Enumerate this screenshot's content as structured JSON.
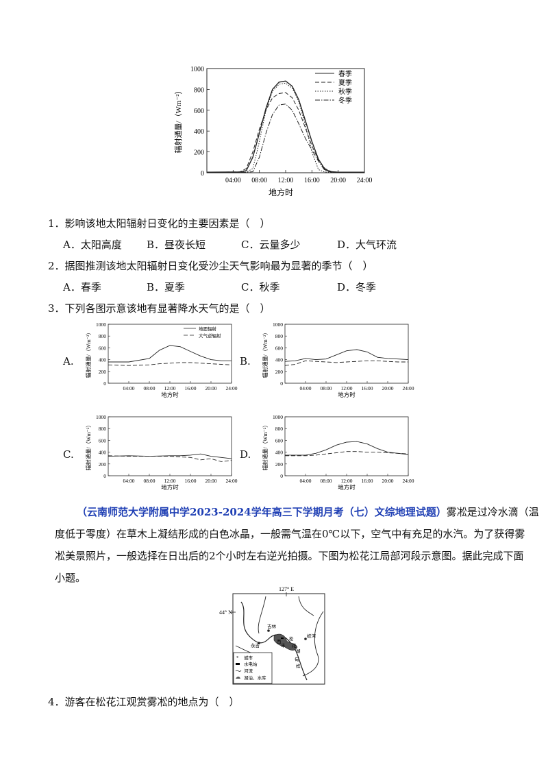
{
  "main_chart": {
    "ylabel": "辐射通量/（Wm⁻²）",
    "xlabel": "地方时",
    "y_ticks": [
      "0",
      "200",
      "400",
      "600",
      "800",
      "1000"
    ],
    "x_ticks": [
      "04:00",
      "08:00",
      "12:00",
      "16:00",
      "20:00",
      "24:00"
    ],
    "legend": [
      "春季",
      "夏季",
      "秋季",
      "冬季"
    ]
  },
  "chart_data": [
    {
      "type": "line",
      "xlabel": "地方时",
      "ylabel": "辐射通量/（Wm⁻²）",
      "ylim": [
        0,
        1000
      ],
      "xlim": [
        0,
        24
      ],
      "legend_position": "top-right",
      "x": [
        0,
        5,
        6,
        7,
        8,
        9,
        10,
        11,
        12,
        13,
        14,
        15,
        16,
        17,
        18,
        19,
        20,
        22,
        24
      ],
      "series": [
        {
          "name": "春季",
          "style": "solid",
          "values": [
            5,
            8,
            20,
            150,
            380,
            620,
            800,
            870,
            880,
            830,
            700,
            500,
            300,
            130,
            30,
            10,
            5,
            5,
            5
          ]
        },
        {
          "name": "夏季",
          "style": "dashed",
          "values": [
            5,
            8,
            40,
            200,
            420,
            600,
            720,
            760,
            770,
            720,
            600,
            430,
            260,
            120,
            40,
            10,
            5,
            5,
            5
          ]
        },
        {
          "name": "秋季",
          "style": "dotted",
          "values": [
            5,
            5,
            5,
            40,
            300,
            600,
            780,
            850,
            860,
            810,
            680,
            460,
            200,
            30,
            5,
            5,
            5,
            5,
            5
          ]
        },
        {
          "name": "冬季",
          "style": "dashdot",
          "values": [
            5,
            5,
            5,
            10,
            150,
            380,
            560,
            650,
            660,
            600,
            470,
            330,
            220,
            110,
            20,
            5,
            5,
            5,
            5
          ]
        }
      ]
    },
    {
      "type": "line",
      "panel": "A",
      "ylim": [
        0,
        1000
      ],
      "xlim": [
        0,
        24
      ],
      "x": [
        0,
        4,
        8,
        10,
        12,
        14,
        16,
        18,
        20,
        22,
        24
      ],
      "series": [
        {
          "name": "地面辐射",
          "style": "solid",
          "values": [
            360,
            360,
            420,
            560,
            640,
            620,
            540,
            460,
            400,
            380,
            380
          ]
        },
        {
          "name": "大气逆辐射",
          "style": "dashed",
          "values": [
            310,
            300,
            310,
            330,
            340,
            350,
            350,
            340,
            330,
            320,
            310
          ]
        }
      ]
    },
    {
      "type": "line",
      "panel": "B",
      "ylim": [
        0,
        1000
      ],
      "xlim": [
        0,
        24
      ],
      "x": [
        0,
        2,
        4,
        6,
        8,
        10,
        12,
        14,
        16,
        18,
        20,
        22,
        24
      ],
      "series": [
        {
          "name": "地面辐射",
          "style": "solid",
          "values": [
            370,
            380,
            420,
            400,
            410,
            480,
            550,
            570,
            530,
            440,
            420,
            410,
            400
          ]
        },
        {
          "name": "大气逆辐射",
          "style": "dashed",
          "values": [
            300,
            320,
            380,
            370,
            360,
            350,
            360,
            370,
            380,
            380,
            370,
            360,
            360
          ]
        }
      ]
    },
    {
      "type": "line",
      "panel": "C",
      "ylim": [
        0,
        1000
      ],
      "xlim": [
        0,
        24
      ],
      "x": [
        0,
        4,
        8,
        12,
        14,
        16,
        18,
        20,
        22,
        24
      ],
      "series": [
        {
          "name": "地面辐射",
          "style": "solid",
          "values": [
            330,
            340,
            330,
            340,
            340,
            350,
            370,
            330,
            310,
            290
          ]
        },
        {
          "name": "大气逆辐射",
          "style": "dashed",
          "values": [
            340,
            330,
            330,
            330,
            320,
            310,
            270,
            290,
            240,
            260
          ]
        }
      ]
    },
    {
      "type": "line",
      "panel": "D",
      "ylim": [
        0,
        1000
      ],
      "xlim": [
        0,
        24
      ],
      "x": [
        0,
        4,
        6,
        8,
        10,
        12,
        14,
        16,
        18,
        20,
        22,
        24
      ],
      "series": [
        {
          "name": "地面辐射",
          "style": "solid",
          "values": [
            350,
            350,
            380,
            440,
            520,
            570,
            580,
            540,
            460,
            400,
            380,
            360
          ]
        },
        {
          "name": "大气逆辐射",
          "style": "dashed",
          "values": [
            340,
            340,
            350,
            370,
            390,
            410,
            410,
            400,
            400,
            390,
            380,
            370
          ]
        }
      ]
    }
  ],
  "small_chart": {
    "ylabel": "辐射通量/（Wm⁻²）",
    "xlabel": "地方时",
    "y_ticks": [
      "0",
      "200",
      "400",
      "600",
      "800",
      "1000"
    ],
    "x_ticks": [
      "04:00",
      "08:00",
      "12:00",
      "16:00",
      "20:00",
      "24:00"
    ],
    "legend": [
      "地面辐射",
      "大气逆辐射"
    ]
  },
  "questions": {
    "q1": {
      "text": "1．影响该地太阳辐射日变化的主要因素是（　）",
      "options": [
        {
          "letter": "A．",
          "text": "太阳高度"
        },
        {
          "letter": "B．",
          "text": "昼夜长短"
        },
        {
          "letter": "C．",
          "text": "云量多少"
        },
        {
          "letter": "D．",
          "text": "大气环流"
        }
      ]
    },
    "q2": {
      "text": "2．据图推测该地太阳辐射日变化受沙尘天气影响最为显著的季节（　）",
      "options": [
        {
          "letter": "A．",
          "text": "春季"
        },
        {
          "letter": "B．",
          "text": "夏季"
        },
        {
          "letter": "C．",
          "text": "秋季"
        },
        {
          "letter": "D．",
          "text": "冬季"
        }
      ]
    },
    "q3": {
      "text": "3．下列各图示意该地有显著降水天气的是（　）",
      "panels": [
        "A.",
        "B.",
        "C.",
        "D."
      ]
    },
    "q4": {
      "text": "4．游客在松花江观赏雾凇的地点为（　）"
    }
  },
  "passage": {
    "source": "（云南师范大学附属中学2023-2024学年高三下学期月考（七）文综地理试题）",
    "line1": "雾凇是过冷水滴（温",
    "line2": "度低于零度）在草木上凝结形成的白色冰晶，一般需气温在0℃以下，空气中有充足的水汽。为了获得雾",
    "line3": "凇美景照片，一般选择在日出后的2个小时左右逆光拍摄。下图为松花江局部河段示意图。据此完成下面",
    "line4": "小题。"
  },
  "map": {
    "lon_label": "127° E",
    "lat_label": "44° N",
    "places": [
      "吉林",
      "永吉",
      "蛟河",
      "松",
      "花",
      "湖",
      "西",
      "丰",
      "甸",
      "桦"
    ],
    "legend": [
      "城市",
      "水电站",
      "河流",
      "湖泊、水库"
    ]
  }
}
